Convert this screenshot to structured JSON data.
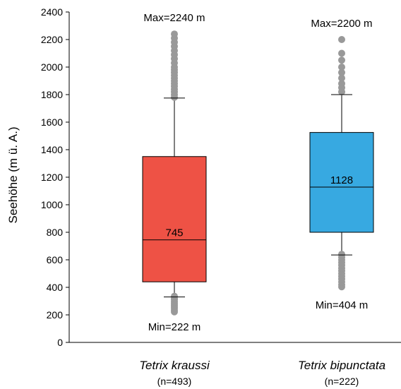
{
  "chart_data": {
    "type": "box",
    "ylabel": "Seehöhe (m ü. A.)",
    "ylim": [
      0,
      2400
    ],
    "yticks": [
      0,
      200,
      400,
      600,
      800,
      1000,
      1200,
      1400,
      1600,
      1800,
      2000,
      2200,
      2400
    ],
    "grid": false,
    "outlier_color": "#999999",
    "groups": [
      {
        "name": "Tetrix kraussi",
        "n_label": "(n=493)",
        "color": "#EE5245",
        "q1": 440,
        "median": 745,
        "q3": 1350,
        "whisker_low": 330,
        "whisker_high": 1775,
        "median_label": "745",
        "max_label": "Max=2240 m",
        "min_label": "Min=222 m",
        "outliers": [
          222,
          235,
          250,
          265,
          280,
          295,
          310,
          320,
          335,
          1780,
          1800,
          1820,
          1840,
          1860,
          1880,
          1900,
          1920,
          1940,
          1960,
          1980,
          2000,
          2030,
          2060,
          2090,
          2120,
          2150,
          2180,
          2210,
          2240
        ]
      },
      {
        "name": "Tetrix bipunctata",
        "n_label": "(n=222)",
        "color": "#37A9E1",
        "q1": 800,
        "median": 1128,
        "q3": 1525,
        "whisker_low": 635,
        "whisker_high": 1800,
        "median_label": "1128",
        "max_label": "Max=2200 m",
        "min_label": "Min=404 m",
        "outliers": [
          404,
          420,
          440,
          460,
          480,
          500,
          520,
          540,
          560,
          580,
          600,
          620,
          640,
          1820,
          1850,
          1880,
          1920,
          1960,
          2000,
          2050,
          2100,
          2200
        ]
      }
    ]
  }
}
